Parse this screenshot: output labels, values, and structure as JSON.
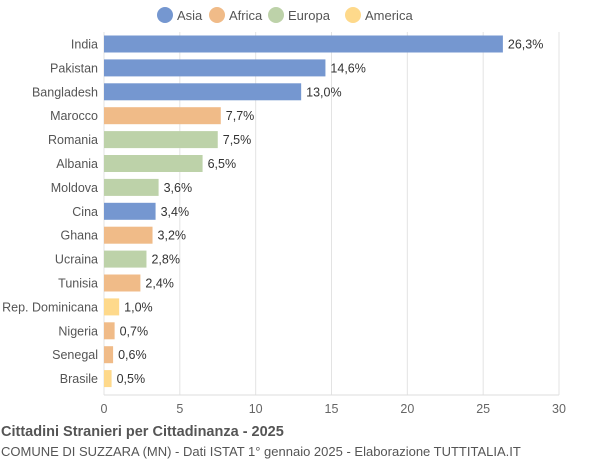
{
  "chart_data": {
    "type": "bar",
    "orientation": "horizontal",
    "title": "Cittadini Stranieri per Cittadinanza - 2025",
    "subtitle": "COMUNE DI SUZZARA (MN) - Dati ISTAT 1° gennaio 2025 - Elaborazione TUTTITALIA.IT",
    "legend_position": "top",
    "legend": [
      {
        "name": "Asia",
        "color": "#7597d0"
      },
      {
        "name": "Africa",
        "color": "#f0bb88"
      },
      {
        "name": "Europa",
        "color": "#bdd2a9"
      },
      {
        "name": "America",
        "color": "#fed98b"
      }
    ],
    "categories": [
      "India",
      "Pakistan",
      "Bangladesh",
      "Marocco",
      "Romania",
      "Albania",
      "Moldova",
      "Cina",
      "Ghana",
      "Ucraina",
      "Tunisia",
      "Rep. Dominicana",
      "Nigeria",
      "Senegal",
      "Brasile"
    ],
    "values": [
      26.3,
      14.6,
      13.0,
      7.7,
      7.5,
      6.5,
      3.6,
      3.4,
      3.2,
      2.8,
      2.4,
      1.0,
      0.7,
      0.6,
      0.5
    ],
    "value_labels": [
      "26,3%",
      "14,6%",
      "13,0%",
      "7,7%",
      "7,5%",
      "6,5%",
      "3,6%",
      "3,4%",
      "3,2%",
      "2,8%",
      "2,4%",
      "1,0%",
      "0,7%",
      "0,6%",
      "0,5%"
    ],
    "groups": [
      "Asia",
      "Asia",
      "Asia",
      "Africa",
      "Europa",
      "Europa",
      "Europa",
      "Asia",
      "Africa",
      "Europa",
      "Africa",
      "America",
      "Africa",
      "Africa",
      "America"
    ],
    "xlim": [
      0,
      30
    ],
    "xticks": [
      "0",
      "5",
      "10",
      "15",
      "20",
      "25",
      "30"
    ],
    "grid": true
  }
}
